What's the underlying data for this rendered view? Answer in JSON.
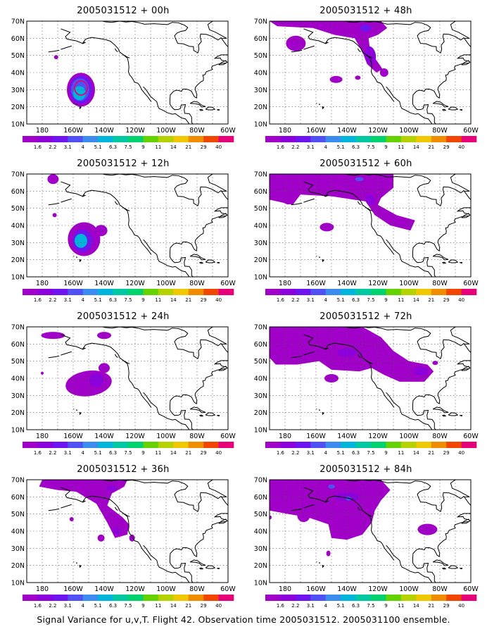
{
  "figure": {
    "caption": "Signal Variance for u,v,T. Flight 42. Observation time 2005031512. 2005031100 ensemble."
  },
  "map": {
    "lat_labels": [
      "70N",
      "60N",
      "50N",
      "40N",
      "30N",
      "20N",
      "10N"
    ],
    "lon_labels": [
      "180",
      "160W",
      "140W",
      "120W",
      "100W",
      "80W",
      "60W"
    ],
    "lat_range": [
      10,
      70
    ],
    "lon_range": [
      -190,
      -60
    ],
    "grid": "dotted"
  },
  "colorbar": {
    "labels": [
      "1.6",
      "2.2",
      "3.1",
      "4",
      "5.1",
      "6.3",
      "7.5",
      "9",
      "11",
      "14",
      "21",
      "29",
      "40"
    ],
    "colors": [
      "#a000c8",
      "#8c00dc",
      "#6e14f0",
      "#5050f5",
      "#3c8cf0",
      "#00b4dc",
      "#00c8a0",
      "#00d26e",
      "#64d200",
      "#b4d200",
      "#f0c800",
      "#f08c00",
      "#f04600",
      "#e6007a"
    ]
  },
  "panels": [
    {
      "title": "2005031512 + 00h",
      "lead": "00h"
    },
    {
      "title": "2005031512 + 48h",
      "lead": "48h"
    },
    {
      "title": "2005031512 + 12h",
      "lead": "12h"
    },
    {
      "title": "2005031512 + 60h",
      "lead": "60h"
    },
    {
      "title": "2005031512 + 24h",
      "lead": "24h"
    },
    {
      "title": "2005031512 + 72h",
      "lead": "72h"
    },
    {
      "title": "2005031512 + 36h",
      "lead": "36h"
    },
    {
      "title": "2005031512 + 84h",
      "lead": "84h"
    }
  ],
  "colors": {
    "coast": "#000000",
    "grid": "#555555",
    "frame": "#000000"
  }
}
